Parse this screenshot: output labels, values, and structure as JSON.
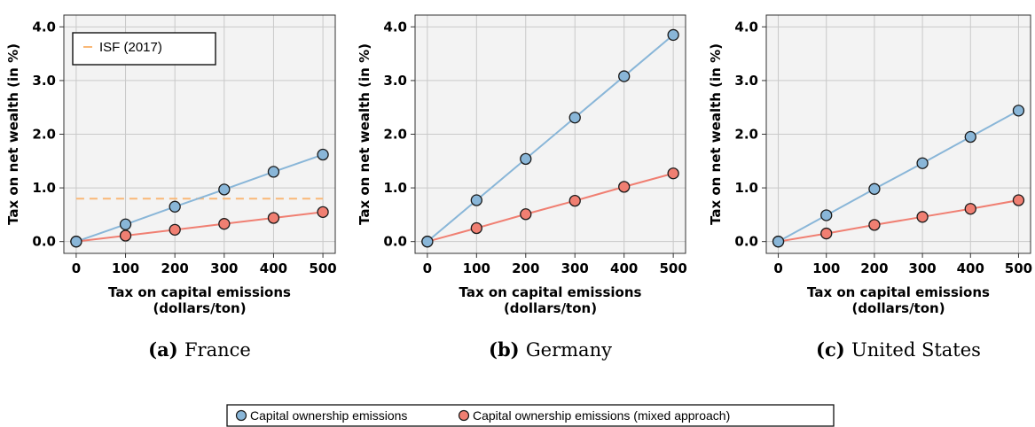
{
  "chart_data": [
    {
      "type": "line",
      "caption_letter": "(a)",
      "caption_text": "France",
      "xlabel": [
        "Tax on capital emissions",
        "(dollars/ton)"
      ],
      "ylabel": "Tax on net wealth (in %)",
      "x": [
        0,
        100,
        200,
        300,
        400,
        500
      ],
      "x_ticks": [
        "0",
        "100",
        "200",
        "300",
        "400",
        "500"
      ],
      "y_ticks": [
        "0.0",
        "1.0",
        "2.0",
        "3.0",
        "4.0"
      ],
      "xlim": [
        -25,
        525
      ],
      "ylim": [
        -0.22,
        4.22
      ],
      "grid": true,
      "series": [
        {
          "name": "Capital ownership emissions",
          "color": "#89b6d8",
          "marker_color": "#89b6d8",
          "values": [
            0,
            0.32,
            0.65,
            0.97,
            1.3,
            1.62
          ]
        },
        {
          "name": "Capital ownership emissions (mixed approach)",
          "color": "#f07f72",
          "marker_color": "#f07f72",
          "values": [
            0,
            0.11,
            0.22,
            0.33,
            0.44,
            0.55
          ]
        }
      ],
      "reference_line": {
        "name": "ISF (2017)",
        "value": 0.8,
        "color": "#f9b877",
        "x_range": [
          0,
          500
        ]
      }
    },
    {
      "type": "line",
      "caption_letter": "(b)",
      "caption_text": "Germany",
      "xlabel": [
        "Tax on capital emissions",
        "(dollars/ton)"
      ],
      "ylabel": "Tax on net wealth (in %)",
      "x": [
        0,
        100,
        200,
        300,
        400,
        500
      ],
      "x_ticks": [
        "0",
        "100",
        "200",
        "300",
        "400",
        "500"
      ],
      "y_ticks": [
        "0.0",
        "1.0",
        "2.0",
        "3.0",
        "4.0"
      ],
      "xlim": [
        -25,
        525
      ],
      "ylim": [
        -0.22,
        4.22
      ],
      "grid": true,
      "series": [
        {
          "name": "Capital ownership emissions",
          "color": "#89b6d8",
          "marker_color": "#89b6d8",
          "values": [
            0,
            0.77,
            1.54,
            2.31,
            3.08,
            3.85
          ]
        },
        {
          "name": "Capital ownership emissions (mixed approach)",
          "color": "#f07f72",
          "marker_color": "#f07f72",
          "values": [
            0,
            0.25,
            0.51,
            0.76,
            1.02,
            1.27
          ]
        }
      ]
    },
    {
      "type": "line",
      "caption_letter": "(c)",
      "caption_text": "United States",
      "xlabel": [
        "Tax on capital emissions",
        "(dollars/ton)"
      ],
      "ylabel": "Tax on net wealth (in %)",
      "x": [
        0,
        100,
        200,
        300,
        400,
        500
      ],
      "x_ticks": [
        "0",
        "100",
        "200",
        "300",
        "400",
        "500"
      ],
      "y_ticks": [
        "0.0",
        "1.0",
        "2.0",
        "3.0",
        "4.0"
      ],
      "xlim": [
        -25,
        525
      ],
      "ylim": [
        -0.22,
        4.22
      ],
      "grid": true,
      "series": [
        {
          "name": "Capital ownership emissions",
          "color": "#89b6d8",
          "marker_color": "#89b6d8",
          "values": [
            0,
            0.49,
            0.98,
            1.46,
            1.95,
            2.44
          ]
        },
        {
          "name": "Capital ownership emissions (mixed approach)",
          "color": "#f07f72",
          "marker_color": "#f07f72",
          "values": [
            0,
            0.15,
            0.31,
            0.46,
            0.61,
            0.77
          ]
        }
      ]
    }
  ],
  "legend": {
    "placement": "bottom-center",
    "entries": [
      {
        "label": "Capital ownership emissions",
        "color": "#89b6d8"
      },
      {
        "label": "Capital ownership emissions (mixed approach)",
        "color": "#f07f72"
      }
    ]
  },
  "colors": {
    "panel_bg": "#f3f3f3",
    "grid": "#c9c9c9",
    "marker_edge": "#1a1a1a"
  }
}
